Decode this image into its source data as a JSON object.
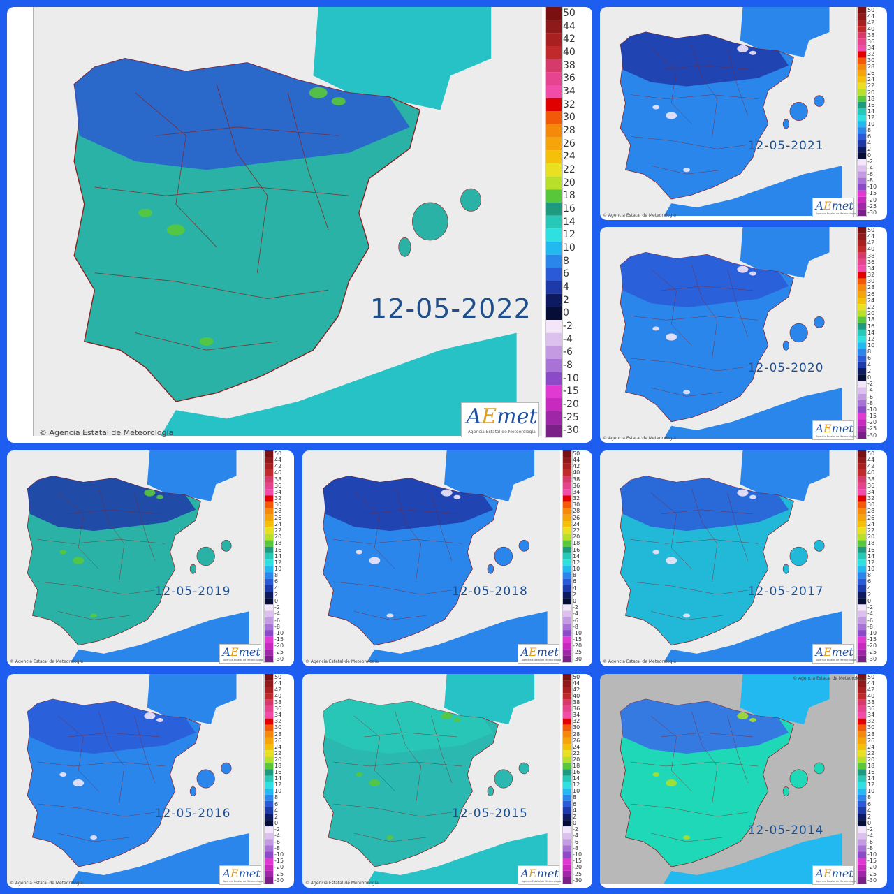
{
  "credit_text": "Agencia Estatal de Meteorología",
  "logo": {
    "prefix": "A",
    "accent": "E",
    "suffix": "met",
    "tagline": "Agencia Estatal de Meteorología"
  },
  "scale": {
    "labels": [
      "50",
      "44",
      "42",
      "40",
      "38",
      "36",
      "34",
      "32",
      "30",
      "28",
      "26",
      "24",
      "22",
      "20",
      "18",
      "16",
      "14",
      "12",
      "10",
      "8",
      "6",
      "4",
      "2",
      "0",
      "-2",
      "-4",
      "-6",
      "-8",
      "-10",
      "-15",
      "-20",
      "-25",
      "-30"
    ],
    "colors": [
      "#7a1010",
      "#8e1a1a",
      "#a82020",
      "#c02a2a",
      "#d63a6a",
      "#e6448e",
      "#f04ca8",
      "#e00000",
      "#f25a0a",
      "#f58a0a",
      "#f5a50a",
      "#f5c00a",
      "#e8e020",
      "#b8e02a",
      "#58c83a",
      "#1e9a7e",
      "#28c8b8",
      "#2ee0e0",
      "#22b8f0",
      "#2a86ea",
      "#2a5ad8",
      "#1e3aa8",
      "#0e1a60",
      "#060e38",
      "#f2e6f8",
      "#dcc0ee",
      "#c49ae2",
      "#a872d6",
      "#8c4ac8",
      "#e03ad2",
      "#c82ac0",
      "#a026a8",
      "#7a2086"
    ]
  },
  "panels": [
    {
      "date": "12-05-2022",
      "land": "#2ab2a6",
      "north": "#2a5ad0",
      "south": "#2ab2a6",
      "spots": "#58c83a",
      "sea": "#26c2c6",
      "ground": "#ececec"
    },
    {
      "date": "12-05-2021",
      "land": "#2a86ea",
      "north": "#1e3aa8",
      "south": "#2a86ea",
      "spots": "#f2e6f8",
      "sea": "#2a86ea",
      "ground": "#ececec"
    },
    {
      "date": "12-05-2020",
      "land": "#2a86ea",
      "north": "#2a5ad8",
      "south": "#2aa6e8",
      "spots": "#f2e6f8",
      "sea": "#2a86ea",
      "ground": "#ececec"
    },
    {
      "date": "12-05-2019",
      "land": "#2ab2a6",
      "north": "#1e3aa8",
      "south": "#2ab2a6",
      "spots": "#58c83a",
      "sea": "#2a86ea",
      "ground": "#ececec"
    },
    {
      "date": "12-05-2018",
      "land": "#2a86ea",
      "north": "#1e3aa8",
      "south": "#22b8f0",
      "spots": "#f2e6f8",
      "sea": "#2a86ea",
      "ground": "#ececec"
    },
    {
      "date": "12-05-2017",
      "land": "#22b8d8",
      "north": "#2a5ad8",
      "south": "#2ab8b0",
      "spots": "#f2e6f8",
      "sea": "#2a86ea",
      "ground": "#ececec"
    },
    {
      "date": "12-05-2016",
      "land": "#2a86ea",
      "north": "#2a5ad8",
      "south": "#2a86ea",
      "spots": "#f2e6f8",
      "sea": "#2a86ea",
      "ground": "#ececec"
    },
    {
      "date": "12-05-2015",
      "land": "#2ab8b0",
      "north": "#28c8b8",
      "south": "#2ab8b0",
      "spots": "#58c83a",
      "sea": "#26c2c6",
      "ground": "#ececec"
    },
    {
      "date": "12-05-2014",
      "land": "#1ed8b8",
      "north": "#3a6ae8",
      "south": "#1ed8b8",
      "spots": "#a8e02a",
      "sea": "#22b8f0",
      "ground": "#b8b8b8"
    }
  ]
}
